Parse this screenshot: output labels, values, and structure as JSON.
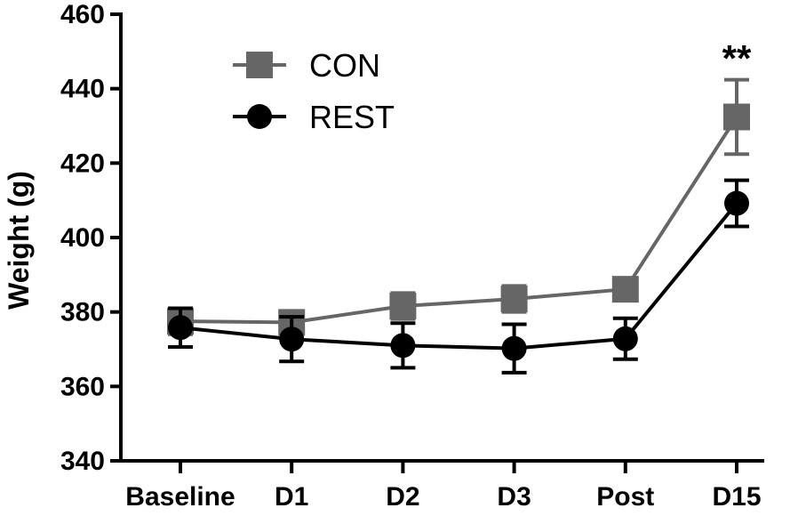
{
  "chart_data": {
    "type": "line",
    "title": "",
    "xlabel": "",
    "ylabel": "Weight (g)",
    "categories": [
      "Baseline",
      "D1",
      "D2",
      "D3",
      "Post",
      "D15"
    ],
    "ylim": [
      340,
      460
    ],
    "yticks": [
      340,
      360,
      380,
      400,
      420,
      440,
      460
    ],
    "grid": false,
    "legend": "top-left",
    "series": [
      {
        "name": "CON",
        "marker": "square",
        "color": "#666666",
        "values": [
          377.5,
          377.2,
          381.6,
          383.5,
          386.1,
          432.4
        ],
        "error": [
          3.5,
          1.5,
          3.5,
          3.5,
          2.5,
          10.0
        ]
      },
      {
        "name": "REST",
        "marker": "circle",
        "color": "#000000",
        "values": [
          375.8,
          372.7,
          371.0,
          370.2,
          372.8,
          409.2
        ],
        "error": [
          5.2,
          6.0,
          6.0,
          6.5,
          5.5,
          6.2
        ]
      }
    ],
    "annotations": [
      {
        "category": "D15",
        "text": "**"
      }
    ]
  }
}
